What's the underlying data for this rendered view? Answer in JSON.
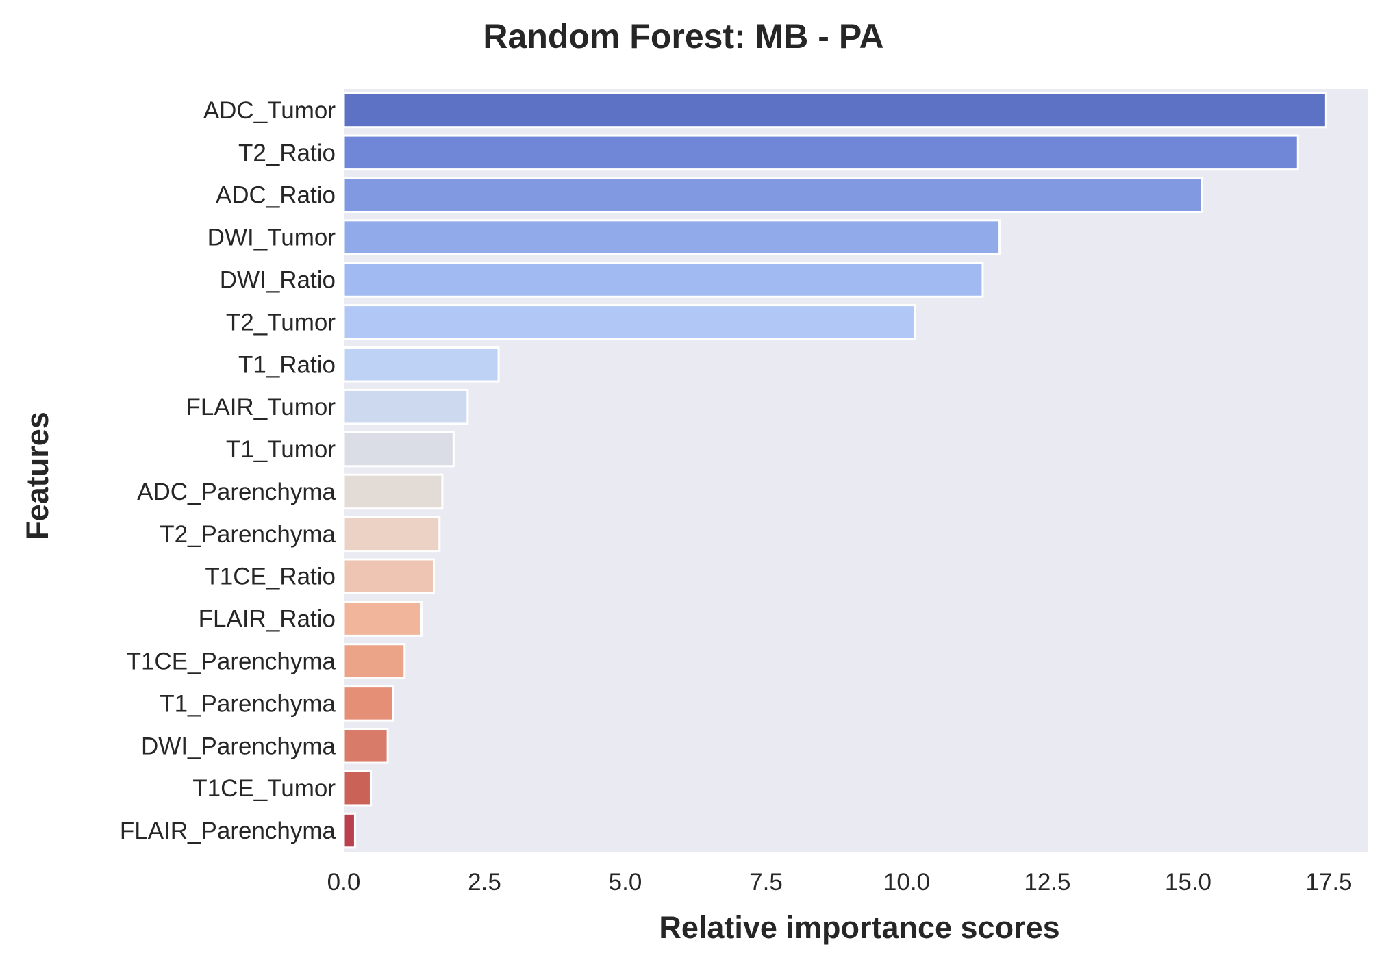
{
  "chart_data": {
    "type": "bar",
    "orientation": "horizontal",
    "title": "Random Forest: MB - PA",
    "xlabel": "Relative importance scores",
    "ylabel": "Features",
    "xlim": [
      0,
      18.2
    ],
    "xticks": [
      0.0,
      2.5,
      5.0,
      7.5,
      10.0,
      12.5,
      15.0,
      17.5
    ],
    "xtick_labels": [
      "0.0",
      "2.5",
      "5.0",
      "7.5",
      "10.0",
      "12.5",
      "15.0",
      "17.5"
    ],
    "grid": false,
    "background": "#eaeaf2",
    "palette": "coolwarm",
    "categories": [
      "ADC_Tumor",
      "T2_Ratio",
      "ADC_Ratio",
      "DWI_Tumor",
      "DWI_Ratio",
      "T2_Tumor",
      "T1_Ratio",
      "FLAIR_Tumor",
      "T1_Tumor",
      "ADC_Parenchyma",
      "T2_Parenchyma",
      "T1CE_Ratio",
      "FLAIR_Ratio",
      "T1CE_Parenchyma",
      "T1_Parenchyma",
      "DWI_Parenchyma",
      "T1CE_Tumor",
      "FLAIR_Parenchyma"
    ],
    "values": [
      17.45,
      16.95,
      15.25,
      11.65,
      11.35,
      10.15,
      2.75,
      2.2,
      1.95,
      1.75,
      1.7,
      1.6,
      1.38,
      1.08,
      0.88,
      0.78,
      0.48,
      0.2
    ],
    "colors": [
      "#5d72c4",
      "#6f87d6",
      "#8099e1",
      "#91aaea",
      "#a1baf2",
      "#b1c7f5",
      "#bed2f5",
      "#ccd9ef",
      "#dadce6",
      "#e3dbd5",
      "#ecd2c5",
      "#eec5b2",
      "#f0b59b",
      "#eba487",
      "#e48f76",
      "#d87b69",
      "#cb6258",
      "#b9404d"
    ]
  }
}
